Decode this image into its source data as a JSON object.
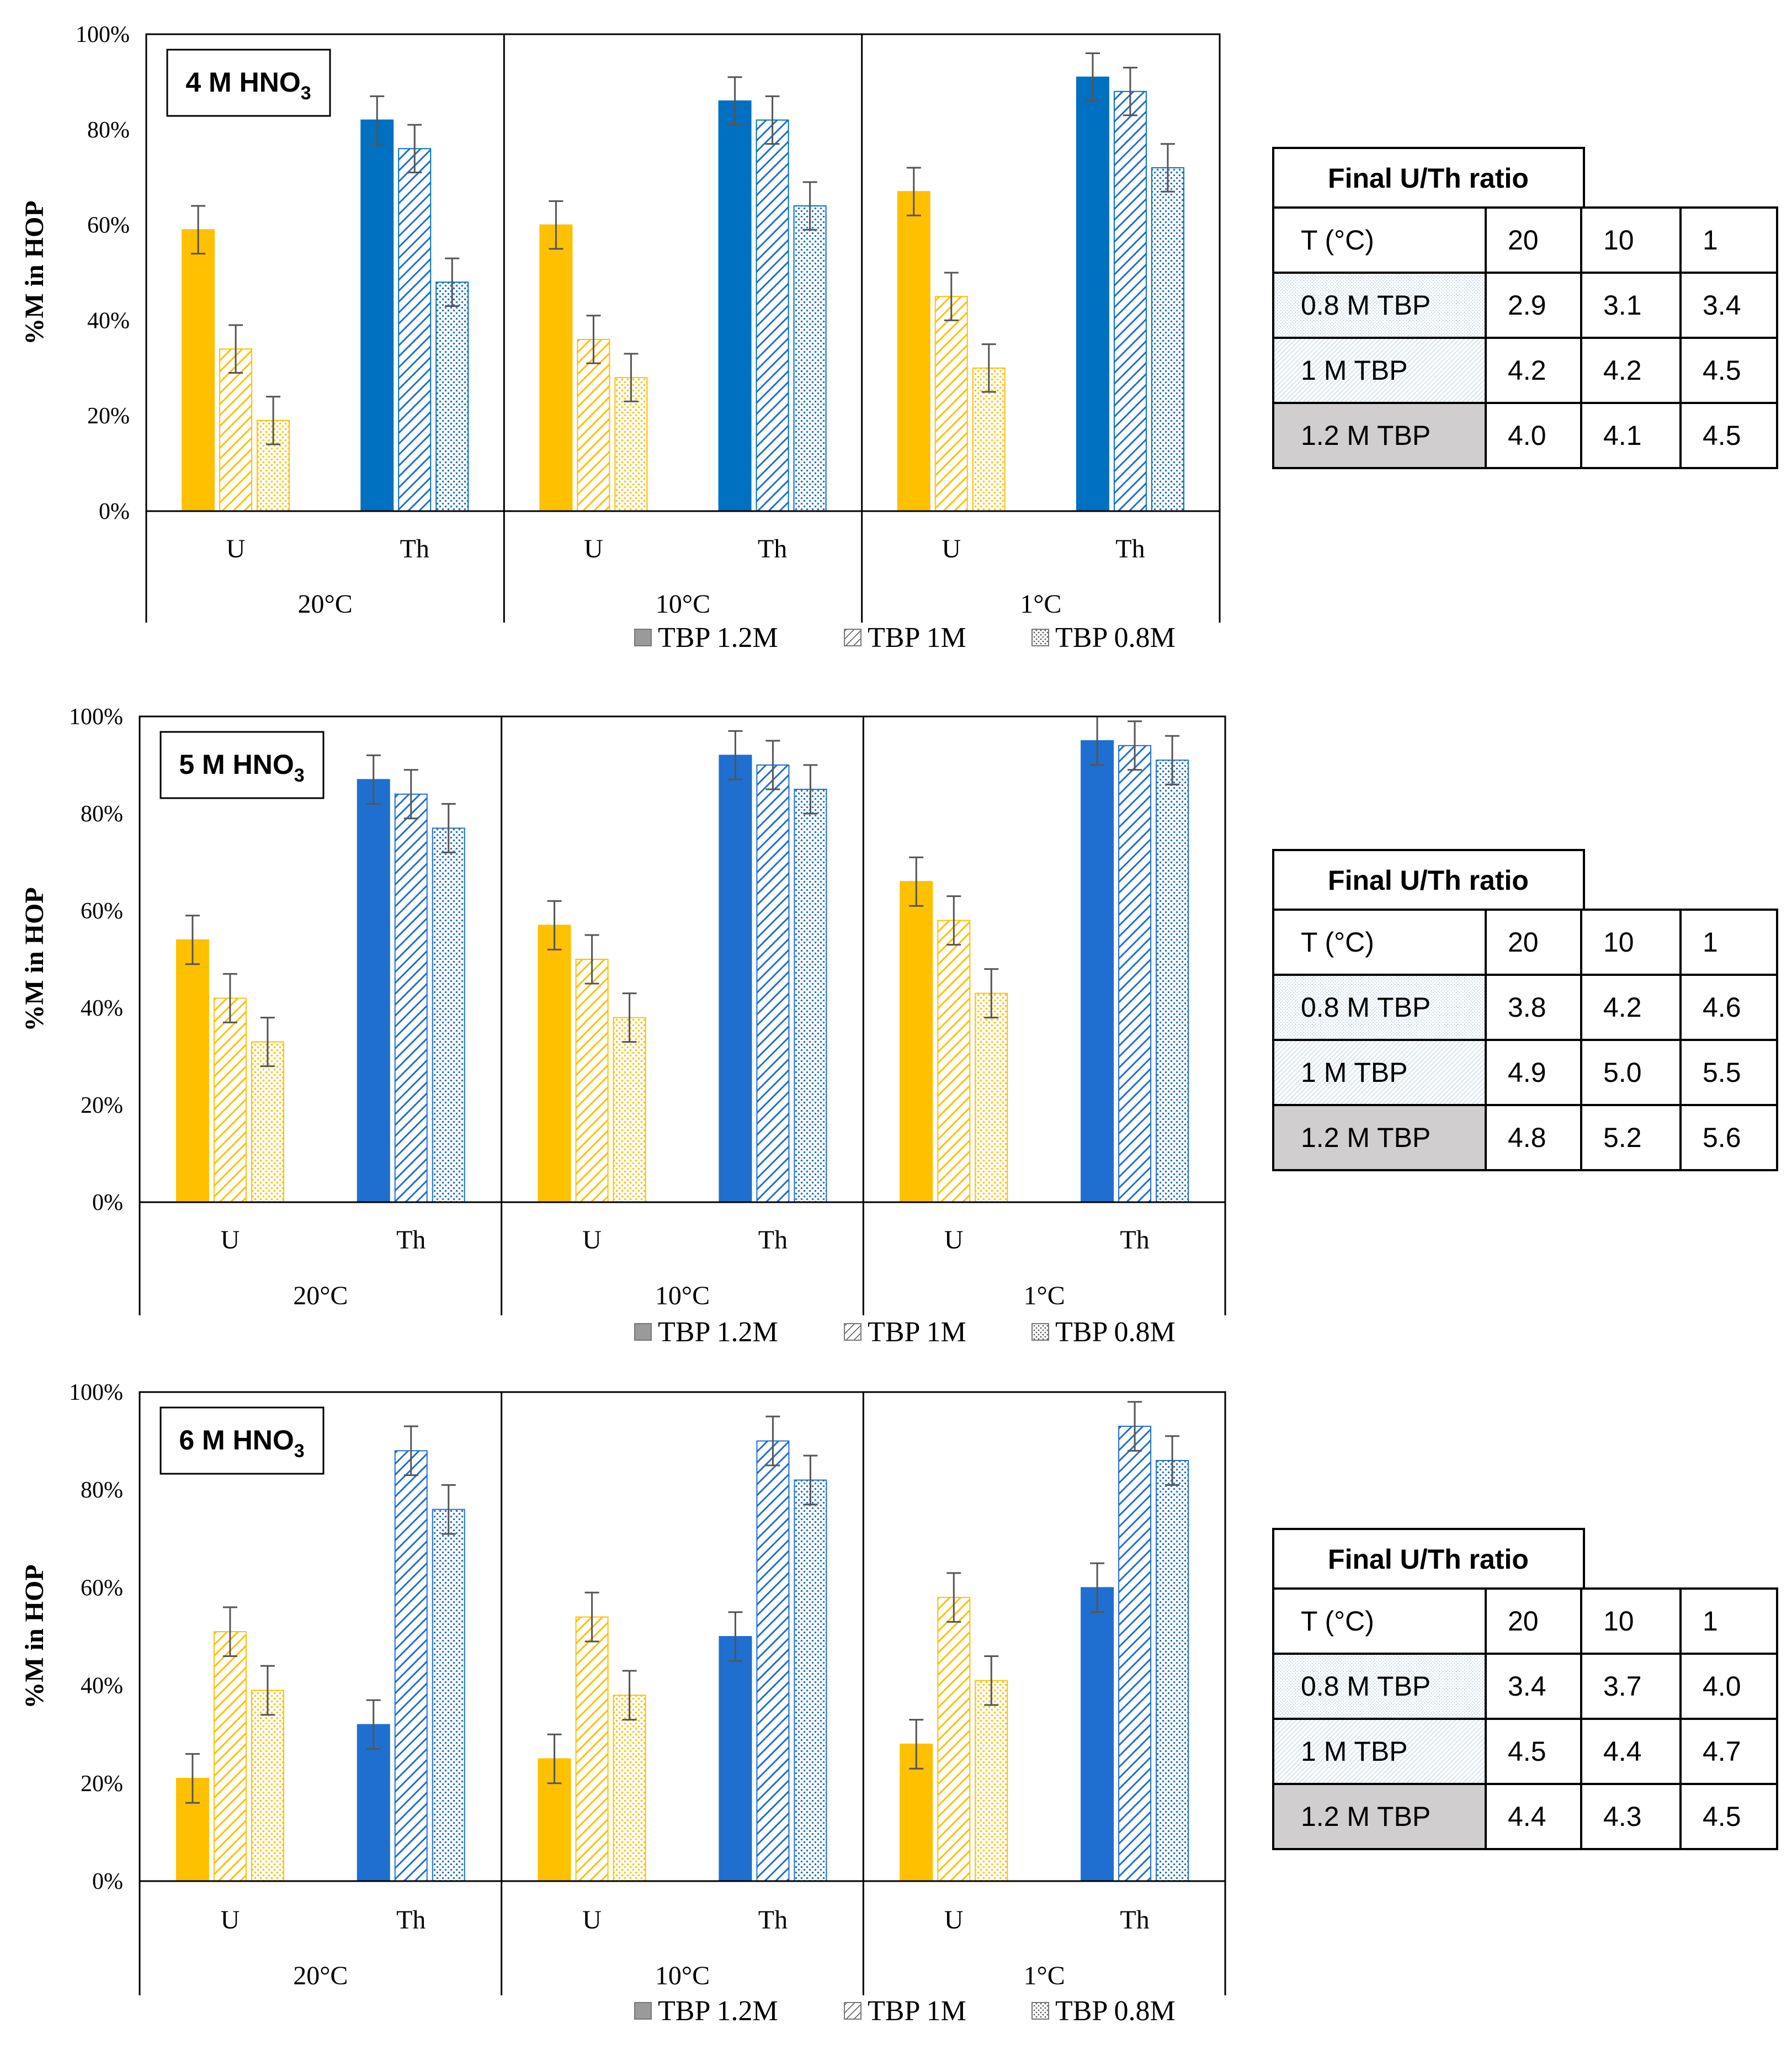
{
  "legend": [
    {
      "label": "TBP 1.2M",
      "pattern": "solid"
    },
    {
      "label": "TBP 1M",
      "pattern": "hatch"
    },
    {
      "label": "TBP 0.8M",
      "pattern": "dots"
    }
  ],
  "colors": {
    "uranium": "#FFC000",
    "thorium_4M": "#0070C0",
    "thorium": "#1F6FD0",
    "frame": "#000000",
    "error": "#555555",
    "cell_shaded": "#d0cece"
  },
  "chart_data": [
    {
      "type": "bar",
      "title": "4 M HNO3",
      "title_text": "4 M HNO",
      "title_sub": "3",
      "ylabel": "%M in HOP",
      "ylim": [
        0,
        100
      ],
      "yticks": [
        "0%",
        "20%",
        "40%",
        "60%",
        "80%",
        "100%"
      ],
      "groups": [
        {
          "label": "20°C",
          "elements": [
            {
              "label": "U",
              "values": [
                59,
                34,
                19
              ]
            },
            {
              "label": "Th",
              "values": [
                82,
                76,
                48
              ]
            }
          ]
        },
        {
          "label": "10°C",
          "elements": [
            {
              "label": "U",
              "values": [
                60,
                36,
                28
              ]
            },
            {
              "label": "Th",
              "values": [
                86,
                82,
                64
              ]
            }
          ]
        },
        {
          "label": "1°C",
          "elements": [
            {
              "label": "U",
              "values": [
                67,
                45,
                30
              ]
            },
            {
              "label": "Th",
              "values": [
                91,
                88,
                72
              ]
            }
          ]
        }
      ],
      "error": 5,
      "table": {
        "title": "Final U/Th ratio",
        "header": [
          "T (°C)",
          "20",
          "10",
          "1"
        ],
        "rows": [
          {
            "label": "0.8 M TBP",
            "values": [
              "2.9",
              "3.1",
              "3.4"
            ]
          },
          {
            "label": "1 M TBP",
            "values": [
              "4.2",
              "4.2",
              "4.5"
            ]
          },
          {
            "label": "1.2 M TBP",
            "values": [
              "4.0",
              "4.1",
              "4.5"
            ]
          }
        ]
      }
    },
    {
      "type": "bar",
      "title": "5 M HNO3",
      "title_text": "5 M HNO",
      "title_sub": "3",
      "ylabel": "%M in HOP",
      "ylim": [
        0,
        100
      ],
      "yticks": [
        "0%",
        "20%",
        "40%",
        "60%",
        "80%",
        "100%"
      ],
      "groups": [
        {
          "label": "20°C",
          "elements": [
            {
              "label": "U",
              "values": [
                54,
                42,
                33
              ]
            },
            {
              "label": "Th",
              "values": [
                87,
                84,
                77
              ]
            }
          ]
        },
        {
          "label": "10°C",
          "elements": [
            {
              "label": "U",
              "values": [
                57,
                50,
                38
              ]
            },
            {
              "label": "Th",
              "values": [
                92,
                90,
                85
              ]
            }
          ]
        },
        {
          "label": "1°C",
          "elements": [
            {
              "label": "U",
              "values": [
                66,
                58,
                43
              ]
            },
            {
              "label": "Th",
              "values": [
                95,
                94,
                91
              ]
            }
          ]
        }
      ],
      "error": 5,
      "table": {
        "title": "Final U/Th ratio",
        "header": [
          "T (°C)",
          "20",
          "10",
          "1"
        ],
        "rows": [
          {
            "label": "0.8 M TBP",
            "values": [
              "3.8",
              "4.2",
              "4.6"
            ]
          },
          {
            "label": "1 M TBP",
            "values": [
              "4.9",
              "5.0",
              "5.5"
            ]
          },
          {
            "label": "1.2 M TBP",
            "values": [
              "4.8",
              "5.2",
              "5.6"
            ]
          }
        ]
      }
    },
    {
      "type": "bar",
      "title": "6 M HNO3",
      "title_text": "6 M HNO",
      "title_sub": "3",
      "ylabel": "%M in HOP",
      "ylim": [
        0,
        100
      ],
      "yticks": [
        "0%",
        "20%",
        "40%",
        "60%",
        "80%",
        "100%"
      ],
      "groups": [
        {
          "label": "20°C",
          "elements": [
            {
              "label": "U",
              "values": [
                21,
                51,
                39
              ]
            },
            {
              "label": "Th",
              "values": [
                32,
                88,
                76
              ]
            }
          ]
        },
        {
          "label": "10°C",
          "elements": [
            {
              "label": "U",
              "values": [
                25,
                54,
                38
              ]
            },
            {
              "label": "Th",
              "values": [
                50,
                90,
                82
              ]
            }
          ]
        },
        {
          "label": "1°C",
          "elements": [
            {
              "label": "U",
              "values": [
                28,
                58,
                41
              ]
            },
            {
              "label": "Th",
              "values": [
                60,
                93,
                86
              ]
            }
          ]
        }
      ],
      "error": 5,
      "table": {
        "title": "Final U/Th ratio",
        "header": [
          "T (°C)",
          "20",
          "10",
          "1"
        ],
        "rows": [
          {
            "label": "0.8 M TBP",
            "values": [
              "3.4",
              "3.7",
              "4.0"
            ]
          },
          {
            "label": "1 M TBP",
            "values": [
              "4.5",
              "4.4",
              "4.7"
            ]
          },
          {
            "label": "1.2 M TBP",
            "values": [
              "4.4",
              "4.3",
              "4.5"
            ]
          }
        ]
      }
    }
  ]
}
